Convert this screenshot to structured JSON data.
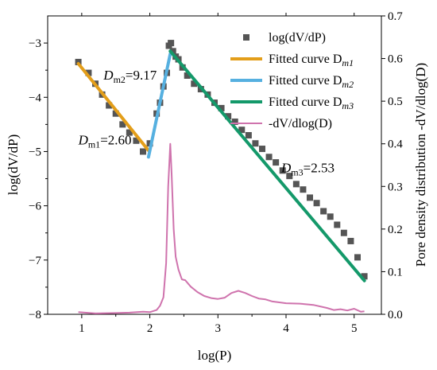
{
  "chart_data": {
    "type": "scatter",
    "xlabel": "log(P)",
    "ylabel_left": "log(dV/dP)",
    "ylabel_right": "Pore density distribution  -dV/dlog(D)",
    "xlim": [
      0.5,
      5.4
    ],
    "ylim_left": [
      -8.0,
      -2.5
    ],
    "ylim_right": [
      0.0,
      0.7
    ],
    "xticks": [
      1,
      2,
      3,
      4,
      5
    ],
    "yticks_left": [
      -8,
      -7,
      -6,
      -5,
      -4,
      -3
    ],
    "yticks_right": [
      0.0,
      0.1,
      0.2,
      0.3,
      0.4,
      0.5,
      0.6,
      0.7
    ],
    "xtick_labels": [
      "1",
      "2",
      "3",
      "4",
      "5"
    ],
    "ytick_labels_left": [
      "−8",
      "−7",
      "−6",
      "−5",
      "−4",
      "−3"
    ],
    "ytick_labels_right": [
      "0.0",
      "0.1",
      "0.2",
      "0.3",
      "0.4",
      "0.5",
      "0.6",
      "0.7"
    ],
    "legend": {
      "placement": "top-right",
      "entries": [
        {
          "label": "log(dV/dP)",
          "kind": "marker",
          "color": "#555555"
        },
        {
          "label": "Fitted curve D",
          "sub": "m1",
          "kind": "line",
          "color": "#E39E1A"
        },
        {
          "label": "Fitted curve D",
          "sub": "m2",
          "kind": "line",
          "color": "#56B0E0"
        },
        {
          "label": "Fitted curve D",
          "sub": "m3",
          "kind": "line",
          "color": "#14996A"
        },
        {
          "label": "-dV/dlog(D)",
          "kind": "line",
          "color": "#CF73AD"
        }
      ]
    },
    "annotations": [
      {
        "main": "D",
        "sub": "m1",
        "rest": "=2.60",
        "x": 0.95,
        "y": -4.87
      },
      {
        "main": "D",
        "sub": "m2",
        "rest": "=9.17",
        "x": 1.32,
        "y": -3.67
      },
      {
        "main": "D",
        "sub": "m3",
        "rest": "=2.53",
        "x": 3.93,
        "y": -5.38
      }
    ],
    "series": [
      {
        "name": "log(dV/dP)",
        "axis": "left",
        "style": "square-marker",
        "color": "#555555",
        "x": [
          0.95,
          1.1,
          1.2,
          1.3,
          1.4,
          1.5,
          1.6,
          1.7,
          1.8,
          1.9,
          2.0,
          2.1,
          2.15,
          2.2,
          2.25,
          2.28,
          2.31,
          2.34,
          2.38,
          2.42,
          2.48,
          2.55,
          2.65,
          2.75,
          2.85,
          2.95,
          3.05,
          3.15,
          3.25,
          3.35,
          3.45,
          3.55,
          3.65,
          3.75,
          3.85,
          3.95,
          4.05,
          4.15,
          4.25,
          4.35,
          4.45,
          4.55,
          4.65,
          4.75,
          4.85,
          4.95,
          5.05,
          5.15
        ],
        "y": [
          -3.35,
          -3.55,
          -3.75,
          -3.95,
          -4.15,
          -4.3,
          -4.5,
          -4.65,
          -4.8,
          -5.0,
          -4.85,
          -4.3,
          -4.1,
          -3.8,
          -3.55,
          -3.05,
          -3.0,
          -3.15,
          -3.25,
          -3.3,
          -3.45,
          -3.6,
          -3.75,
          -3.85,
          -3.95,
          -4.1,
          -4.2,
          -4.35,
          -4.45,
          -4.6,
          -4.7,
          -4.85,
          -4.95,
          -5.1,
          -5.2,
          -5.35,
          -5.45,
          -5.6,
          -5.7,
          -5.85,
          -5.95,
          -6.1,
          -6.2,
          -6.35,
          -6.5,
          -6.65,
          -6.95,
          -7.3
        ]
      },
      {
        "name": "Fitted curve Dm1",
        "axis": "left",
        "style": "line",
        "color": "#E39E1A",
        "x": [
          0.95,
          1.98
        ],
        "y": [
          -3.38,
          -4.98
        ]
      },
      {
        "name": "Fitted curve Dm2",
        "axis": "left",
        "style": "line",
        "color": "#56B0E0",
        "x": [
          1.98,
          2.3
        ],
        "y": [
          -5.1,
          -3.2
        ]
      },
      {
        "name": "Fitted curve Dm3",
        "axis": "left",
        "style": "line",
        "color": "#14996A",
        "x": [
          2.3,
          5.15
        ],
        "y": [
          -3.15,
          -7.38
        ]
      },
      {
        "name": "-dV/dlog(D)",
        "axis": "right",
        "style": "line",
        "color": "#CF73AD",
        "x": [
          0.95,
          1.2,
          1.5,
          1.7,
          1.9,
          2.0,
          2.1,
          2.15,
          2.2,
          2.24,
          2.27,
          2.3,
          2.32,
          2.35,
          2.38,
          2.42,
          2.47,
          2.52,
          2.6,
          2.7,
          2.8,
          2.9,
          3.0,
          3.1,
          3.2,
          3.3,
          3.4,
          3.5,
          3.6,
          3.7,
          3.8,
          4.0,
          4.2,
          4.4,
          4.6,
          4.7,
          4.8,
          4.9,
          5.0,
          5.1,
          5.15
        ],
        "y": [
          0.005,
          0.002,
          0.003,
          0.004,
          0.006,
          0.005,
          0.01,
          0.02,
          0.04,
          0.12,
          0.3,
          0.4,
          0.33,
          0.2,
          0.135,
          0.105,
          0.082,
          0.08,
          0.065,
          0.052,
          0.043,
          0.038,
          0.036,
          0.039,
          0.05,
          0.055,
          0.05,
          0.043,
          0.037,
          0.035,
          0.03,
          0.026,
          0.025,
          0.022,
          0.015,
          0.01,
          0.012,
          0.009,
          0.013,
          0.006,
          0.007
        ]
      }
    ]
  }
}
